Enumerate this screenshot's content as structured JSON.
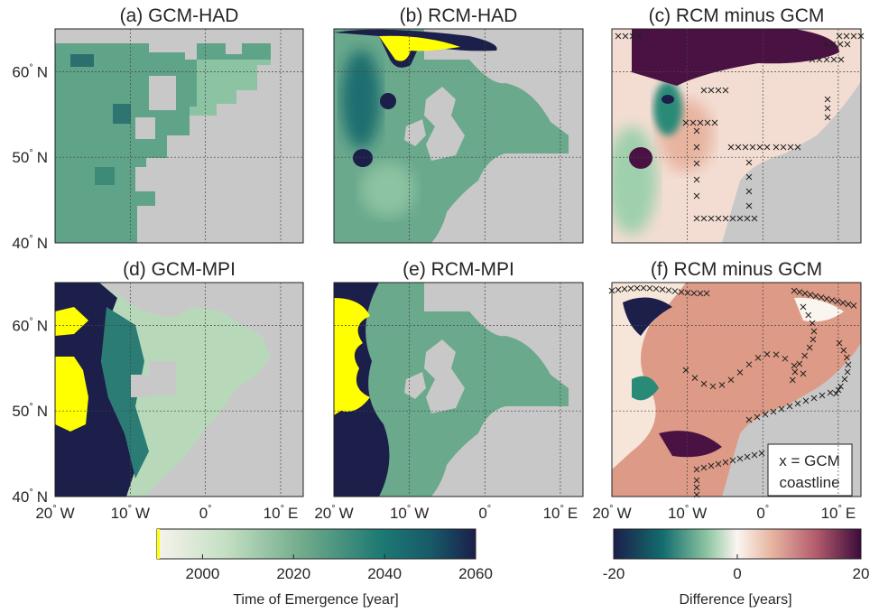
{
  "chart_data": {
    "type": "heatmap",
    "panels": [
      {
        "id": "a",
        "title": "(a) GCM-HAD",
        "field": "toe",
        "source": "gcm-had"
      },
      {
        "id": "b",
        "title": "(b) RCM-HAD",
        "field": "toe",
        "source": "rcm-had"
      },
      {
        "id": "c",
        "title": "(c) RCM minus GCM",
        "field": "diff",
        "source": "diff-had"
      },
      {
        "id": "d",
        "title": "(d) GCM-MPI",
        "field": "toe",
        "source": "gcm-mpi"
      },
      {
        "id": "e",
        "title": "(e) RCM-MPI",
        "field": "toe",
        "source": "rcm-mpi"
      },
      {
        "id": "f",
        "title": "(f) RCM minus GCM",
        "field": "diff",
        "source": "diff-mpi"
      }
    ],
    "lat_ticks": [
      {
        "value": 60,
        "deg": "60",
        "sfx": "N"
      },
      {
        "value": 50,
        "deg": "50",
        "sfx": "N"
      },
      {
        "value": 40,
        "deg": "40",
        "sfx": "N"
      }
    ],
    "lon_ticks": [
      {
        "value": -20,
        "deg": "20",
        "sfx": "W"
      },
      {
        "value": -10,
        "deg": "10",
        "sfx": "W"
      },
      {
        "value": 0,
        "deg": "0",
        "sfx": ""
      },
      {
        "value": 10,
        "deg": "10",
        "sfx": "E"
      }
    ],
    "deg_symbol": "°",
    "lon_range": [
      -20,
      13
    ],
    "lat_range": [
      40,
      65
    ],
    "grid": true,
    "land_color": "#c8c8c8",
    "emergence_beyond_color": "#ffff00",
    "colorbars": [
      {
        "id": "toe",
        "label": "Time of Emergence [year]",
        "range": [
          1990,
          2060
        ],
        "ticks": [
          2000,
          2020,
          2040,
          2060
        ]
      },
      {
        "id": "diff",
        "label": "Difference [years]",
        "range": [
          -20,
          20
        ],
        "ticks": [
          -20,
          0,
          20
        ]
      }
    ],
    "annotation": {
      "panel": "f",
      "lines": [
        "x = GCM",
        "coastline"
      ]
    }
  }
}
